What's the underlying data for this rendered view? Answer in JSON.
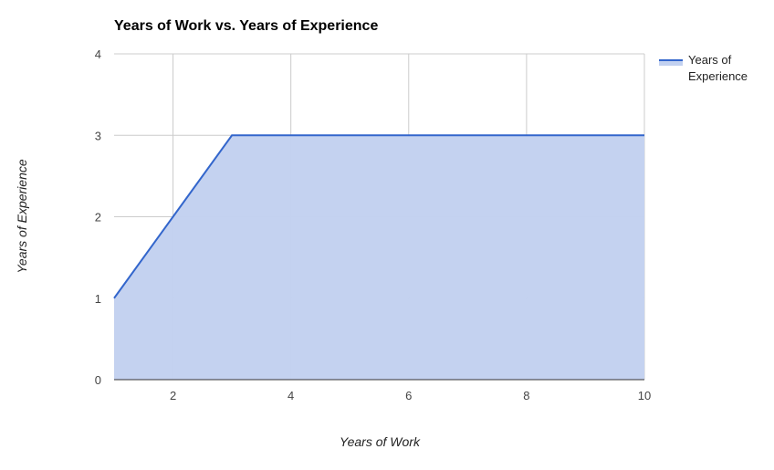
{
  "chart_data": {
    "type": "area",
    "title": "Years of Work vs. Years of Experience",
    "xlabel": "Years of Work",
    "ylabel": "Years of Experience",
    "x": [
      1,
      2,
      3,
      4,
      5,
      6,
      7,
      8,
      9,
      10
    ],
    "series": [
      {
        "name": "Years of Experience",
        "values": [
          1,
          2,
          3,
          3,
          3,
          3,
          3,
          3,
          3,
          3
        ],
        "color": "#3366cc",
        "fill": "#c2d1f0"
      }
    ],
    "xlim": [
      1,
      10
    ],
    "ylim": [
      0,
      4
    ],
    "x_ticks": [
      2,
      4,
      6,
      8,
      10
    ],
    "y_ticks": [
      0,
      1,
      2,
      3,
      4
    ],
    "grid": true,
    "legend_position": "top-right",
    "legend_lines": [
      "Years of",
      "Experience"
    ]
  }
}
